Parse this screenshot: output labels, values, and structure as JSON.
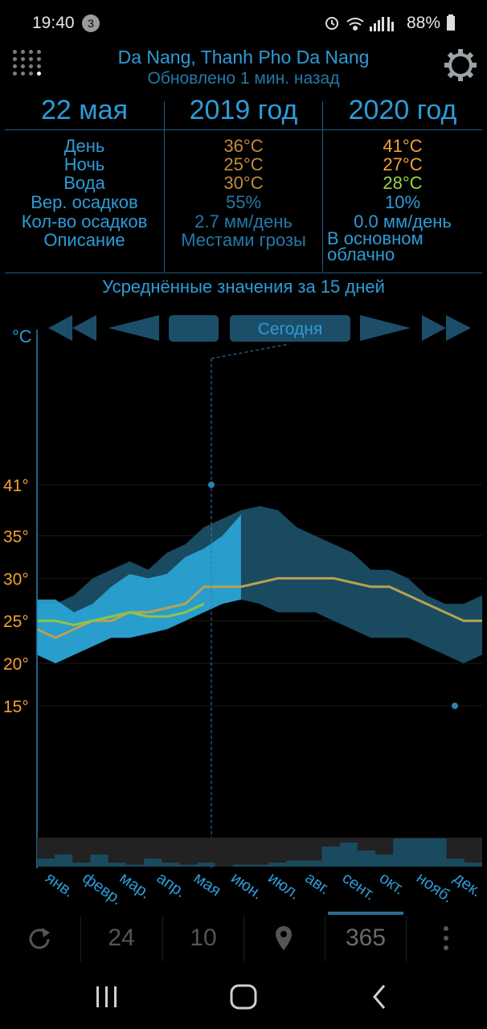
{
  "status_bar": {
    "time": "19:40",
    "notification_count": "3",
    "battery": "88%",
    "icons": [
      "alarm-icon",
      "wifi-icon",
      "signal-icon",
      "battery-icon"
    ]
  },
  "header": {
    "location": "Da Nang, Thanh Pho Da Nang",
    "updated": "Обновлено 1 мин. назад",
    "menu_icon": "grid-dots-icon",
    "settings_icon": "gear-icon"
  },
  "comparison": {
    "date": "22 мая",
    "year_a": "2019 год",
    "year_b": "2020 год",
    "rows": [
      {
        "label": "День",
        "a": "36°C",
        "b": "41°C"
      },
      {
        "label": "Ночь",
        "a": "25°C",
        "b": "27°C"
      },
      {
        "label": "Вода",
        "a": "30°C",
        "b": "28°C"
      },
      {
        "label": "Вер. осадков",
        "a": "55%",
        "b": "10%"
      },
      {
        "label": "Кол-во осадков",
        "a": "2.7 мм/день",
        "b": "0.0 мм/день"
      },
      {
        "label": "Описание",
        "a": "Местами грозы",
        "b": "В основном облачно"
      }
    ],
    "colors": {
      "label": "#2e9bd6",
      "a": "#c48a3e",
      "b_hot": "#f0a235",
      "b_water": "#9cd447"
    }
  },
  "averaged_title": "Усреднённые значения за 15 дней",
  "controls": {
    "today_label": "Сегодня",
    "buttons": [
      "skip-back-icon",
      "back-icon",
      "blank-button",
      "forward-icon",
      "skip-forward-icon"
    ]
  },
  "chart_data": {
    "type": "area",
    "unit_label": "°C",
    "y_ticks": [
      "41°",
      "35°",
      "30°",
      "25°",
      "20°",
      "15°"
    ],
    "y_tick_values": [
      41,
      35,
      30,
      25,
      20,
      15
    ],
    "months": [
      "янв.",
      "февр.",
      "мар.",
      "апр.",
      "мая",
      "июн.",
      "июл.",
      "авг.",
      "сент.",
      "окт.",
      "нояб.",
      "дек."
    ],
    "x": [
      0,
      0.5,
      1,
      1.5,
      2,
      2.5,
      3,
      3.5,
      4,
      4.5,
      5,
      5.5,
      6,
      6.5,
      7,
      7.5,
      8,
      8.5,
      9,
      9.5,
      10,
      10.5,
      11,
      11.5,
      12
    ],
    "series": [
      {
        "values_high": [
          27,
          27,
          28,
          30,
          31,
          32,
          31,
          33,
          34,
          36,
          37,
          38,
          38.5,
          38,
          36,
          35,
          34,
          33,
          31,
          31,
          30,
          28,
          27,
          27,
          28
        ]
      },
      {
        "values_low": [
          21,
          20,
          21,
          22,
          23,
          23,
          23.5,
          24,
          25,
          26,
          27,
          27.5,
          27,
          26,
          26,
          26,
          25,
          24,
          23,
          23,
          23,
          22,
          21,
          20,
          21
        ]
      },
      {
        "values_avg": [
          24,
          23,
          24,
          25,
          25,
          26,
          26,
          26.5,
          27,
          29,
          29,
          29,
          29.5,
          30,
          30,
          30,
          30,
          29.5,
          29,
          29,
          28,
          27,
          26,
          25,
          25
        ]
      },
      {
        "values_current": [
          27.5,
          27.5,
          26,
          27,
          29,
          30.5,
          30,
          30.5,
          32.5,
          33.5,
          35,
          37.5
        ]
      },
      {
        "values_current_avg": [
          25,
          25,
          24.5,
          25,
          25.5,
          26,
          25.5,
          25.5,
          26,
          27
        ]
      }
    ],
    "markers": [
      41,
      15
    ],
    "precipitation": [
      2,
      3,
      1,
      3,
      1,
      0.5,
      2,
      1,
      0.5,
      1,
      0,
      0.5,
      0.5,
      1,
      1.5,
      1.5,
      5,
      6,
      4,
      3,
      7,
      7,
      7,
      2,
      1
    ],
    "ylim": [
      15,
      41
    ],
    "colors": {
      "band": "#1a4a60",
      "current_band": "#2ba6d8",
      "avg_line": "#b7a253",
      "current_line": "#8fc34a",
      "axis": "#2e7fb0",
      "tick": "#f0a235"
    }
  },
  "bottom_bar": {
    "refresh_icon": "refresh-icon",
    "range_24": "24",
    "range_10": "10",
    "location_icon": "location-pin-icon",
    "range_365": "365",
    "more_icon": "more-vert-icon"
  }
}
